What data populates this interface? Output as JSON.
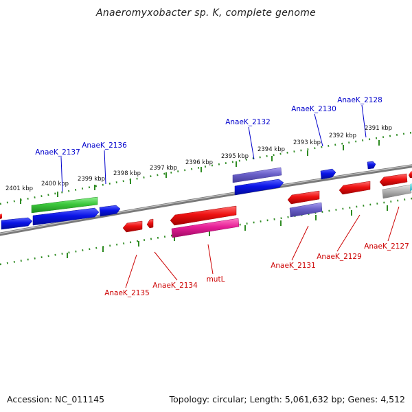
{
  "title": "Anaeromyxobacter sp. K, complete genome",
  "footer": {
    "accession": "Accession: NC_011145",
    "summary": "Topology: circular; Length: 5,061,632 bp; Genes: 4,512"
  },
  "colors": {
    "backbone": "#7f7f7f",
    "ruler": "#2e8b22",
    "top_label": "#0000cc",
    "bottom_label": "#cc0000",
    "blue_gene": "#0a14e6",
    "purple_gene": "#6a60c8",
    "green_gene": "#3cc83c",
    "red_gene": "#ee1111",
    "magenta_gene": "#e61e96",
    "gray_gene": "#aaaaaa"
  },
  "ruler_ticks": [
    "2401 kbp",
    "2400 kbp",
    "2399 kbp",
    "2398 kbp",
    "2397 kbp",
    "2396 kbp",
    "2395 kbp",
    "2394 kbp",
    "2393 kbp",
    "2392 kbp",
    "2391 kbp"
  ],
  "top_genes": [
    "AnaeK_2137",
    "AnaeK_2136",
    "AnaeK_2132",
    "AnaeK_2130",
    "AnaeK_2128"
  ],
  "bottom_genes": [
    "AnaeK_2135",
    "AnaeK_2134",
    "mutL",
    "AnaeK_2131",
    "AnaeK_2129",
    "AnaeK_2127"
  ]
}
